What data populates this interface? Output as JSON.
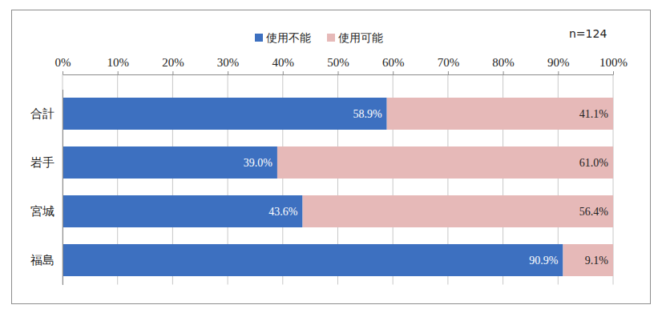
{
  "chart_data": {
    "type": "bar",
    "orientation": "horizontal",
    "stacked": true,
    "data_labels": true,
    "grid": true,
    "legend": "top",
    "annotation": "n=124",
    "categories": [
      "合計",
      "岩手",
      "宮城",
      "福島"
    ],
    "series": [
      {
        "name": "使用不能",
        "color": "#3d70c0",
        "values": [
          58.9,
          39.0,
          43.6,
          90.9
        ],
        "value_labels": [
          "58.9%",
          "39.0%",
          "43.6%",
          "90.9%"
        ]
      },
      {
        "name": "使用可能",
        "color": "#e6b9b8",
        "values": [
          41.1,
          61.0,
          56.4,
          9.1
        ],
        "value_labels": [
          "41.1%",
          "61.0%",
          "56.4%",
          "9.1%"
        ]
      }
    ],
    "xlim": [
      0,
      100
    ],
    "xticks": [
      {
        "value": 0,
        "label": "0%"
      },
      {
        "value": 10,
        "label": "10%"
      },
      {
        "value": 20,
        "label": "20%"
      },
      {
        "value": 30,
        "label": "30%"
      },
      {
        "value": 40,
        "label": "40%"
      },
      {
        "value": 50,
        "label": "50%"
      },
      {
        "value": 60,
        "label": "60%"
      },
      {
        "value": 70,
        "label": "70%"
      },
      {
        "value": 80,
        "label": "80%"
      },
      {
        "value": 90,
        "label": "90%"
      },
      {
        "value": 100,
        "label": "100%"
      }
    ]
  }
}
